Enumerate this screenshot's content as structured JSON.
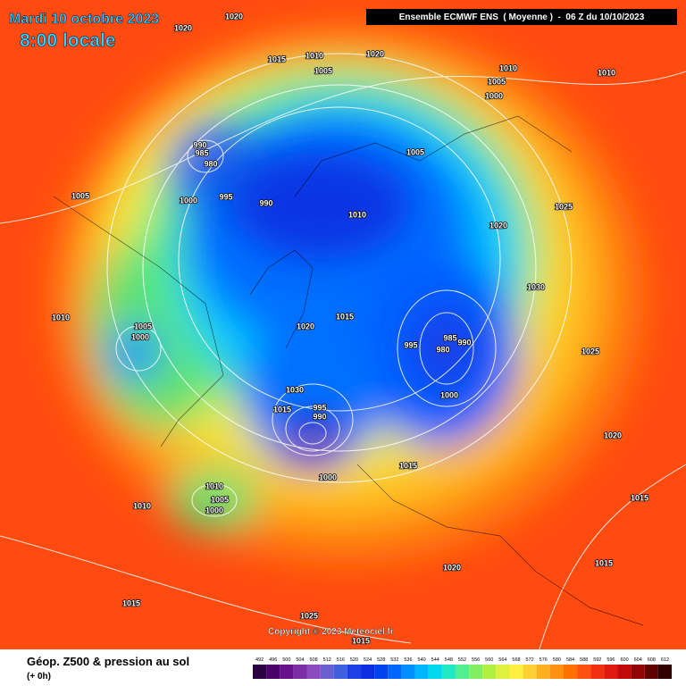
{
  "header": {
    "date": "Mardi 10 octobre 2023",
    "time": "8:00 locale",
    "model": "Ensemble ECMWF ENS  ( Moyenne )  -  06 Z du 10/10/2023"
  },
  "footer": {
    "field": "Géop. Z500 & pression au sol",
    "step": "(+ 0h)",
    "copyright": "Copyright © 2023 Meteociel.fr"
  },
  "colorbar": {
    "values": [
      492,
      496,
      500,
      504,
      508,
      512,
      516,
      520,
      524,
      528,
      532,
      536,
      540,
      544,
      548,
      552,
      556,
      560,
      564,
      568,
      572,
      576,
      580,
      584,
      588,
      592,
      596,
      600,
      604,
      608,
      612
    ],
    "colors": [
      "#2a0040",
      "#4a006a",
      "#66108a",
      "#7c2ca4",
      "#8a4ac0",
      "#6a5fd0",
      "#4060e0",
      "#1e3ee6",
      "#0a2ee0",
      "#0044f0",
      "#0066ff",
      "#0090ff",
      "#00b4ff",
      "#00d8f0",
      "#20e8c0",
      "#50f090",
      "#80f060",
      "#b0f040",
      "#e0f040",
      "#fff040",
      "#ffd030",
      "#ffb020",
      "#ff9010",
      "#ff7000",
      "#ff5010",
      "#f03010",
      "#e01a10",
      "#c00a0a",
      "#900404",
      "#600000",
      "#300000"
    ]
  },
  "pressure_labels": [
    1020,
    1020,
    1015,
    1010,
    1005,
    1020,
    1010,
    1010,
    1000,
    1005,
    990,
    985,
    980,
    1005,
    1005,
    1000,
    995,
    990,
    1010,
    1020,
    1025,
    1010,
    1005,
    1000,
    1020,
    1015,
    995,
    985,
    980,
    990,
    1000,
    1030,
    995,
    990,
    1015,
    1015,
    1000,
    1010,
    1005,
    1000,
    1010,
    1025,
    1015,
    1015,
    1020,
    1030,
    1025,
    1020,
    1015,
    1015
  ]
}
